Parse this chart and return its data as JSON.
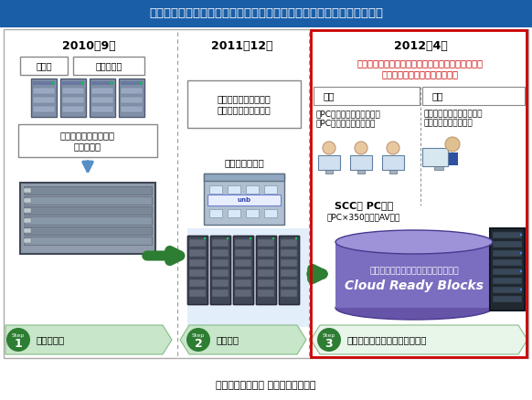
{
  "title": "基幹システムを仮想化統合し、段階的にプライベートクラウド化を実現",
  "title_bg": "#1a5ea8",
  "title_color": "#ffffff",
  "footer": "【関東学院大学様 システム概要図】",
  "col1_year": "2010年9月",
  "col2_year": "2011年12月",
  "col3_year": "2012年4月",
  "col3_highlight": "プライベートクラウド統合パッケージ製品により、\n教育研究サービスの利便性向上",
  "col3_highlight_color": "#cc0000",
  "col1_box1": "事務系",
  "col1_box2": "教育研究系",
  "col1_label": "教研・事務システムを\n仮想化統合",
  "col2_label": "ポータル系システムを\nデータセンターに移行",
  "col2_sublabel": "データセンター",
  "student_label": "学生",
  "teacher_label": "教員",
  "student_text": "・PC教室の空き状況等確認\n（PC、携帯、専用端末）",
  "teacher_text": "・セルフサービスポータル\nによるリソースの貸出",
  "scc_label": "SCC館 PC教室",
  "scc_sub": "・PC×350台　・AV機器",
  "cloud_label1": "プライベートクラウド統合パッケージ",
  "cloud_label2": "Cloud Ready Blocks",
  "step1_num": "1",
  "step1_label": "仮想化統合",
  "step2_num": "2",
  "step2_label": "災害対策",
  "step3_num": "3",
  "step3_label": "教育研究サービスの利便性向上",
  "step_circle_color": "#2d7d32",
  "step_bg_color": "#c8e6c9",
  "step3_bg_color": "#e8f5e9",
  "bg_color": "#f0f0f0",
  "red_border": "#cc0000",
  "blue_bg": "#d6e8f8",
  "arrow_color": "#2d7d32",
  "server_dark": "#5a6878",
  "server_mid": "#7a8898",
  "server_light": "#9ab0c8"
}
